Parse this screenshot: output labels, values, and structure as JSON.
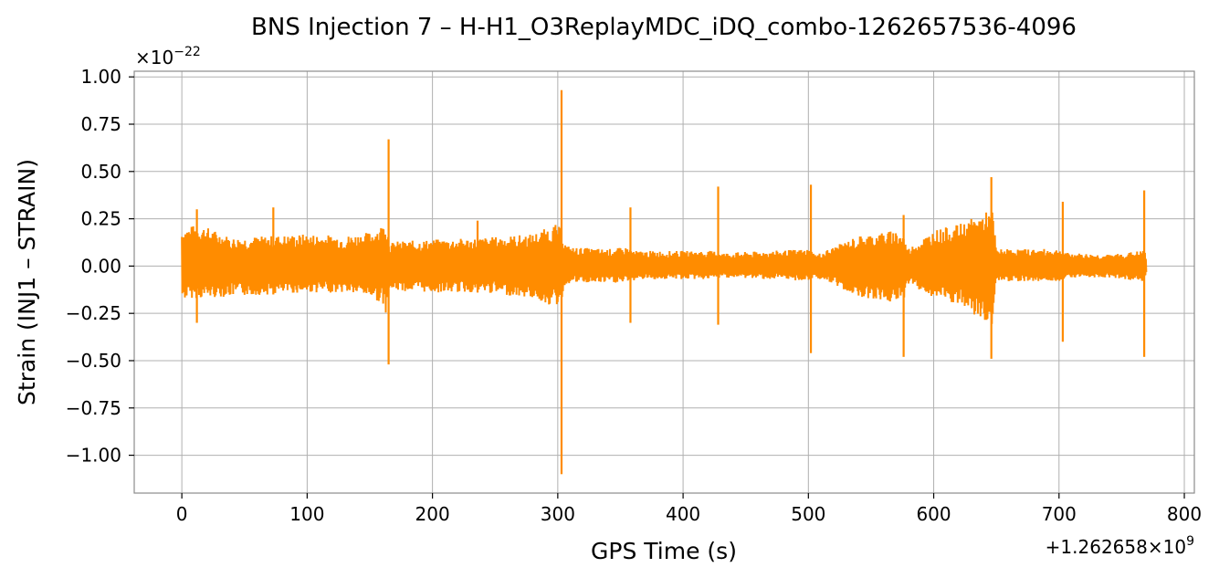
{
  "chart_data": {
    "type": "line",
    "title": "BNS Injection 7 – H-H1_O3ReplayMDC_iDQ_combo-1262657536-4096",
    "xlabel": "GPS Time (s)",
    "ylabel": "Strain (INJ1 – STRAIN)",
    "x_offset_label": "+1.262658×10",
    "x_offset_exp": "9",
    "y_scale_label": "×10",
    "y_scale_exp": "−22",
    "xlim": [
      -38,
      808
    ],
    "ylim": [
      -1.2,
      1.03
    ],
    "xticks": [
      0,
      100,
      200,
      300,
      400,
      500,
      600,
      700,
      800
    ],
    "xtick_labels": [
      "0",
      "100",
      "200",
      "300",
      "400",
      "500",
      "600",
      "700",
      "800"
    ],
    "yticks": [
      1.0,
      0.75,
      0.5,
      0.25,
      0.0,
      -0.25,
      -0.5,
      -0.75,
      -1.0
    ],
    "ytick_labels": [
      "1.00",
      "0.75",
      "0.50",
      "0.25",
      "0.00",
      "−0.25",
      "−0.50",
      "−0.75",
      "−1.00"
    ],
    "grid": true,
    "series_color": "#ff8c00",
    "envelope": {
      "x": [
        0,
        5,
        15,
        40,
        70,
        100,
        130,
        150,
        160,
        163,
        166,
        170,
        200,
        240,
        280,
        298,
        303,
        306,
        310,
        340,
        355,
        359,
        362,
        400,
        425,
        429,
        432,
        470,
        500,
        503,
        506,
        540,
        570,
        576,
        579,
        600,
        620,
        640,
        647,
        650,
        670,
        700,
        703,
        706,
        740,
        765,
        768,
        770
      ],
      "upper": [
        0.2,
        0.21,
        0.22,
        0.15,
        0.16,
        0.17,
        0.16,
        0.18,
        0.22,
        0.25,
        0.12,
        0.13,
        0.14,
        0.15,
        0.17,
        0.22,
        0.2,
        0.12,
        0.1,
        0.09,
        0.1,
        0.09,
        0.08,
        0.08,
        0.08,
        0.08,
        0.07,
        0.08,
        0.09,
        0.08,
        0.06,
        0.16,
        0.19,
        0.17,
        0.09,
        0.19,
        0.22,
        0.28,
        0.3,
        0.09,
        0.09,
        0.09,
        0.08,
        0.07,
        0.06,
        0.08,
        0.09,
        0.03
      ],
      "lower": [
        -0.18,
        -0.17,
        -0.17,
        -0.16,
        -0.15,
        -0.14,
        -0.14,
        -0.16,
        -0.2,
        -0.25,
        -0.13,
        -0.13,
        -0.14,
        -0.14,
        -0.17,
        -0.22,
        -0.18,
        -0.1,
        -0.09,
        -0.09,
        -0.09,
        -0.09,
        -0.07,
        -0.07,
        -0.07,
        -0.07,
        -0.06,
        -0.07,
        -0.08,
        -0.07,
        -0.06,
        -0.16,
        -0.2,
        -0.18,
        -0.09,
        -0.17,
        -0.21,
        -0.3,
        -0.31,
        -0.08,
        -0.08,
        -0.08,
        -0.07,
        -0.06,
        -0.06,
        -0.08,
        -0.09,
        -0.03
      ]
    },
    "spikes": [
      {
        "x": 12,
        "max": 0.3,
        "min": -0.3
      },
      {
        "x": 73,
        "max": 0.31,
        "min": -0.15
      },
      {
        "x": 165,
        "max": 0.67,
        "min": -0.52
      },
      {
        "x": 236,
        "max": 0.24,
        "min": -0.14
      },
      {
        "x": 303,
        "max": 0.93,
        "min": -1.1
      },
      {
        "x": 358,
        "max": 0.31,
        "min": -0.3
      },
      {
        "x": 428,
        "max": 0.42,
        "min": -0.31
      },
      {
        "x": 502,
        "max": 0.43,
        "min": -0.46
      },
      {
        "x": 576,
        "max": 0.27,
        "min": -0.48
      },
      {
        "x": 646,
        "max": 0.47,
        "min": -0.49
      },
      {
        "x": 703,
        "max": 0.34,
        "min": -0.4
      },
      {
        "x": 768,
        "max": 0.4,
        "min": -0.48
      }
    ]
  }
}
